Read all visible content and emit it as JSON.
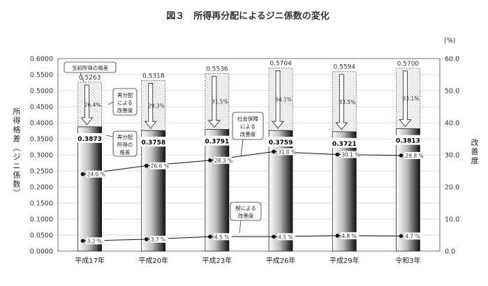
{
  "chart_data": {
    "type": "bar",
    "title": "図３　所得再分配によるジニ係数の変化",
    "categories": [
      "平成17年",
      "平成20年",
      "平成23年",
      "平成26年",
      "平成29年",
      "令和3年"
    ],
    "series": [
      {
        "name": "当初所得の格差",
        "values": [
          0.5263,
          0.5318,
          0.5536,
          0.5704,
          0.5594,
          0.57
        ]
      },
      {
        "name": "再分配所得の格差",
        "values": [
          0.3873,
          0.3758,
          0.3791,
          0.3759,
          0.3721,
          0.3813
        ]
      },
      {
        "name": "再分配による改善度",
        "axis": "right",
        "values": [
          26.4,
          29.3,
          31.5,
          34.1,
          33.5,
          33.1
        ]
      },
      {
        "name": "社会保障による改善度",
        "axis": "right",
        "values": [
          24.0,
          26.6,
          28.3,
          31.0,
          30.1,
          29.8
        ]
      },
      {
        "name": "税による改善度",
        "axis": "right",
        "values": [
          3.2,
          3.7,
          4.5,
          4.5,
          4.8,
          4.7
        ]
      }
    ],
    "ylabel": "所得格差（ジニ係数）",
    "ylabel_right": "改善度",
    "right_unit": "(%)",
    "ylim": [
      0,
      0.6
    ],
    "ylim_right": [
      0,
      60
    ],
    "yticks": [
      "0.0000",
      "0.0500",
      "0.1000",
      "0.1500",
      "0.2000",
      "0.2500",
      "0.3000",
      "0.3500",
      "0.4000",
      "0.4500",
      "0.5000",
      "0.5500",
      "0.6000"
    ],
    "yticks_right": [
      "0.0",
      "10.0",
      "20.0",
      "30.0",
      "40.0",
      "50.0",
      "60.0"
    ],
    "callouts": {
      "initial": "当初所得の格差",
      "redistribution": [
        "再分配",
        "による",
        "改善度"
      ],
      "redistributed": [
        "再分配",
        "所得の",
        "格差"
      ],
      "social": [
        "社会保障",
        "による",
        "改善度"
      ],
      "tax": [
        "税による",
        "改善度"
      ]
    }
  }
}
